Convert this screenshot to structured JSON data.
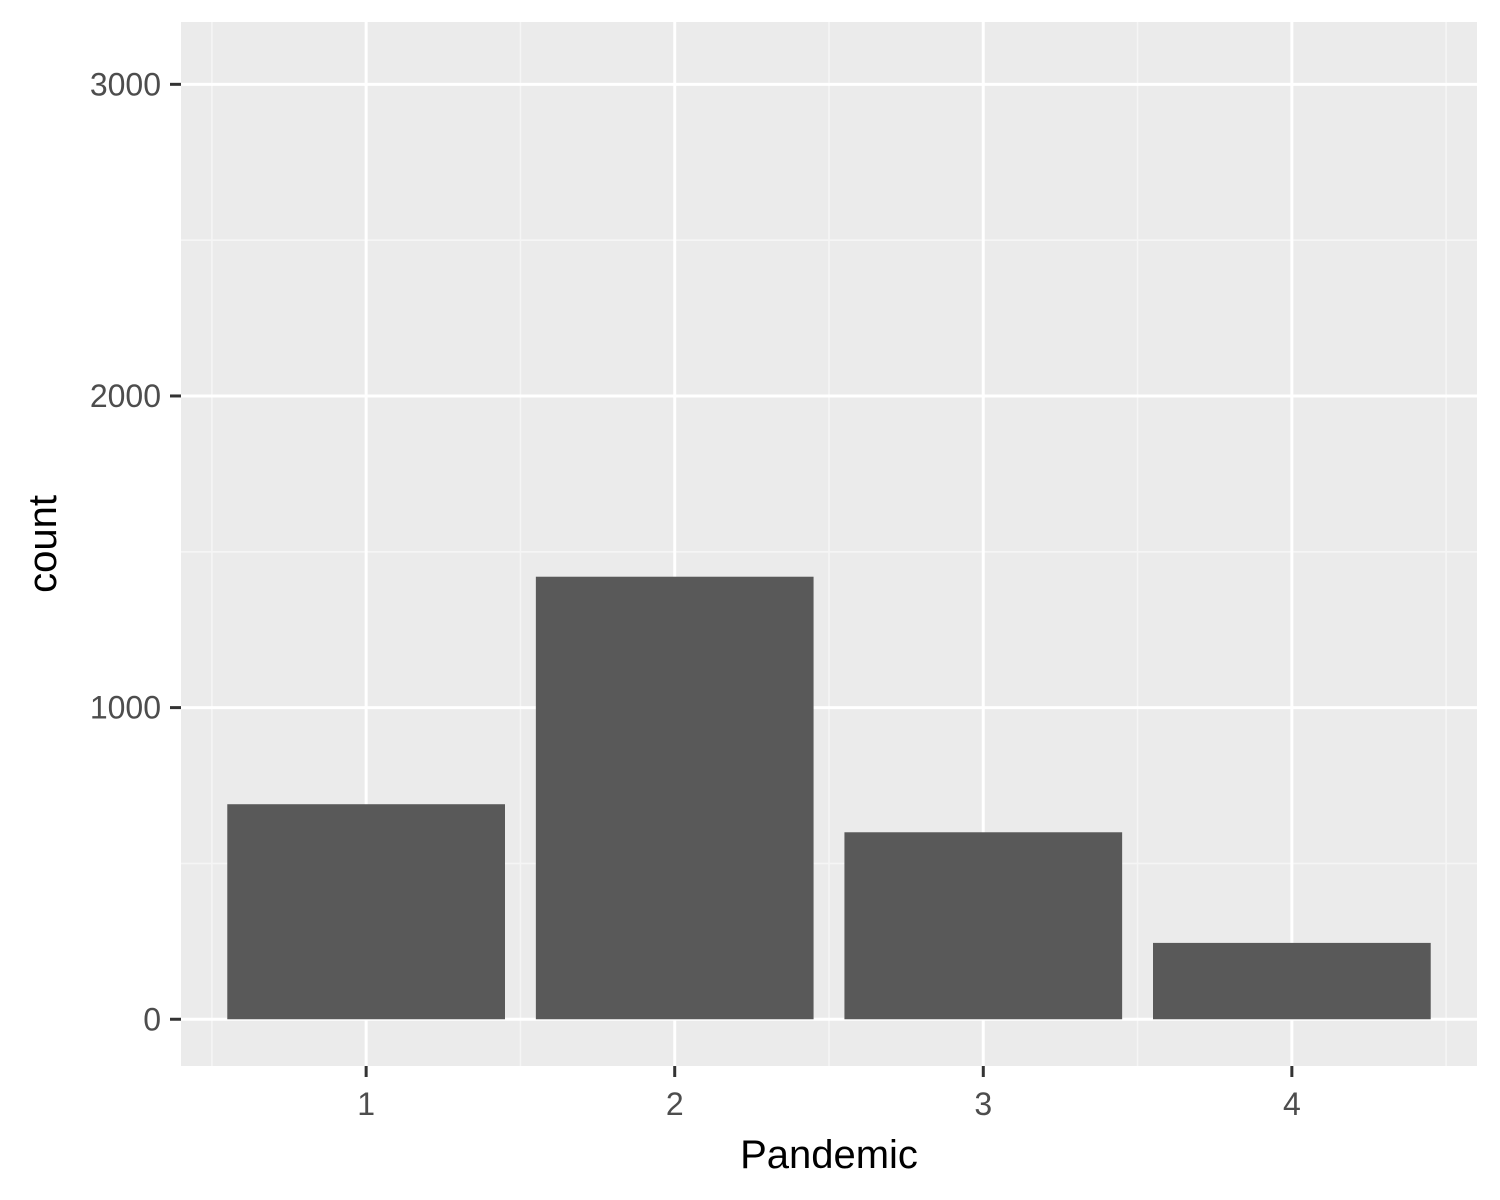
{
  "chart_data": {
    "type": "bar",
    "categories": [
      "1",
      "2",
      "3",
      "4"
    ],
    "values": [
      690,
      1420,
      600,
      245
    ],
    "title": "",
    "xlabel": "Pandemic",
    "ylabel": "count",
    "ylim": [
      -150,
      3200
    ],
    "yticks": [
      0,
      1000,
      2000,
      3000
    ],
    "ytick_labels": [
      "0",
      "1000",
      "2000",
      "3000"
    ],
    "grid": true,
    "legend": "none",
    "colors": {
      "panel_background": "#ebebeb",
      "grid_major": "#ffffff",
      "grid_minor": "#f5f5f5",
      "bar_fill": "#595959",
      "tick_mark": "#333333"
    }
  }
}
